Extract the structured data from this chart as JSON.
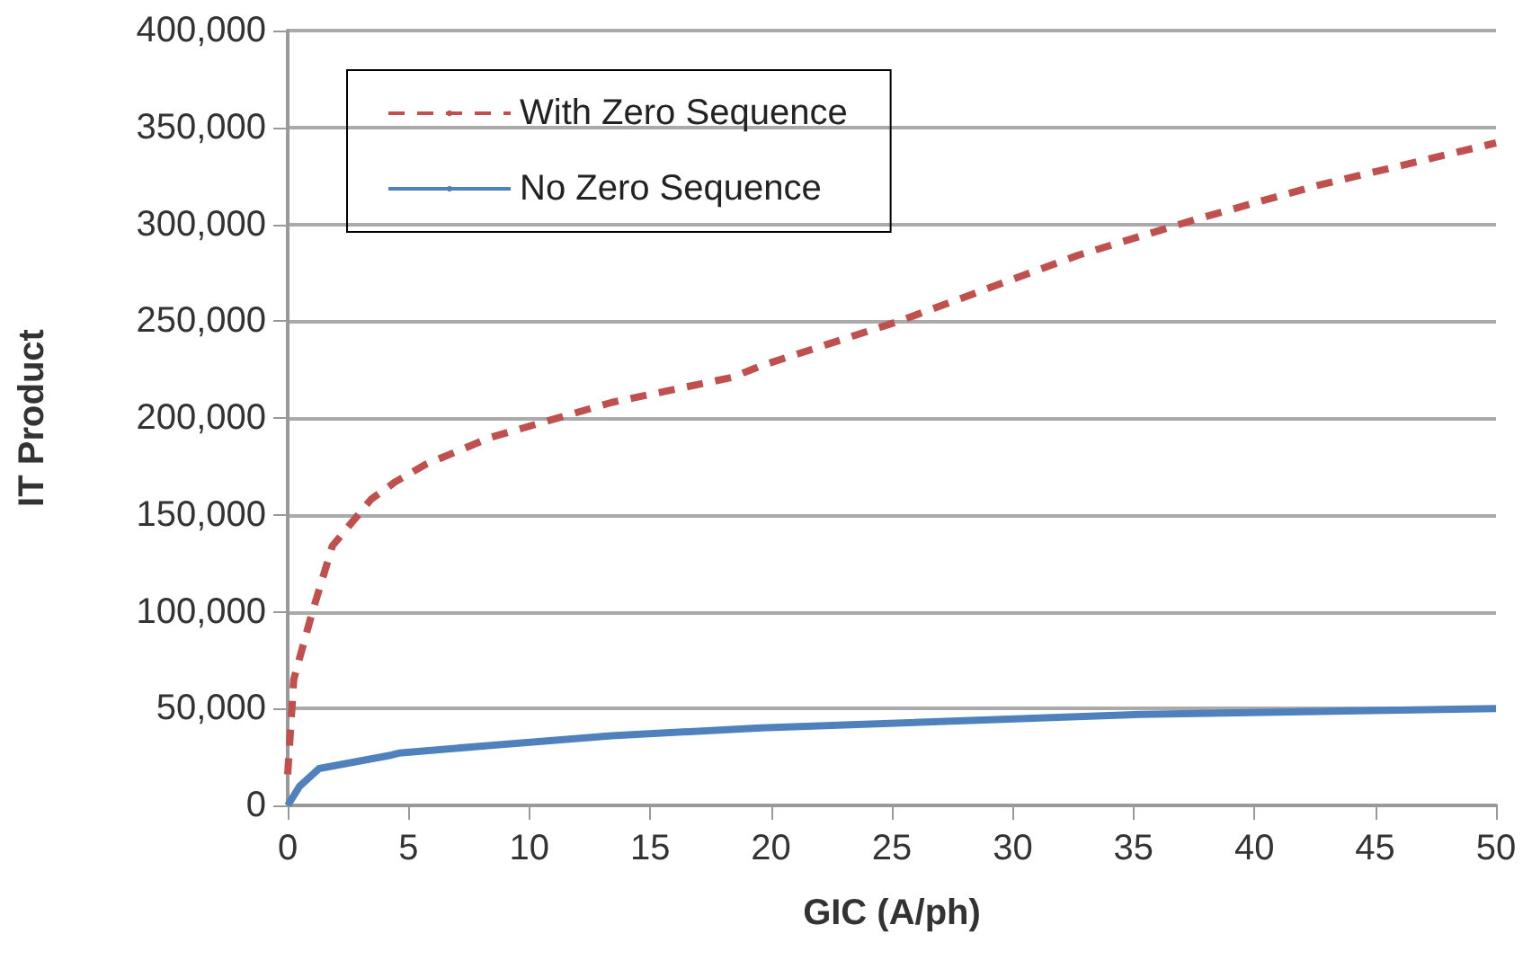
{
  "chart_data": {
    "type": "line",
    "xlabel": "GIC (A/ph)",
    "ylabel": "IT Product",
    "xlim": [
      0,
      50
    ],
    "xticks": [
      0,
      5,
      10,
      15,
      20,
      25,
      30,
      35,
      40,
      45,
      50
    ],
    "ylim": [
      0,
      400000
    ],
    "yticks": [
      0,
      {
        "value": 50000,
        "label": "50,000"
      },
      {
        "value": 100000,
        "label": "100,000"
      },
      {
        "value": 150000,
        "label": "150,000"
      },
      {
        "value": 200000,
        "label": "200,000"
      },
      {
        "value": 250000,
        "label": "250,000"
      },
      {
        "value": 300000,
        "label": "300,000"
      },
      {
        "value": 350000,
        "label": "350,000"
      },
      {
        "value": 400000,
        "label": "400,000"
      }
    ],
    "grid": "y",
    "legend": "top left",
    "marker": "none",
    "series": [
      {
        "name": "With Zero Sequence",
        "color": "#c0504d",
        "line_style": "dashed",
        "x": [
          0,
          0.25,
          1,
          1.85,
          3.45,
          4.45,
          5.7,
          8.4,
          10.9,
          13.4,
          18.4,
          19.6,
          25.3,
          32.7,
          37.7,
          42.6,
          50
        ],
        "values": [
          16000,
          65000,
          99000,
          134000,
          158000,
          167000,
          176000,
          190000,
          199000,
          208000,
          221000,
          227000,
          250000,
          284000,
          303000,
          320000,
          342000
        ]
      },
      {
        "name": "No Zero Sequence",
        "color": "#4f81bd",
        "line_style": "solid",
        "x": [
          0,
          0.5,
          1.3,
          3.45,
          4.3,
          4.6,
          8.4,
          13.4,
          19.6,
          35.3,
          50
        ],
        "values": [
          0,
          10000,
          19000,
          24000,
          26000,
          27000,
          31000,
          36000,
          40000,
          47000,
          50000
        ]
      }
    ]
  }
}
